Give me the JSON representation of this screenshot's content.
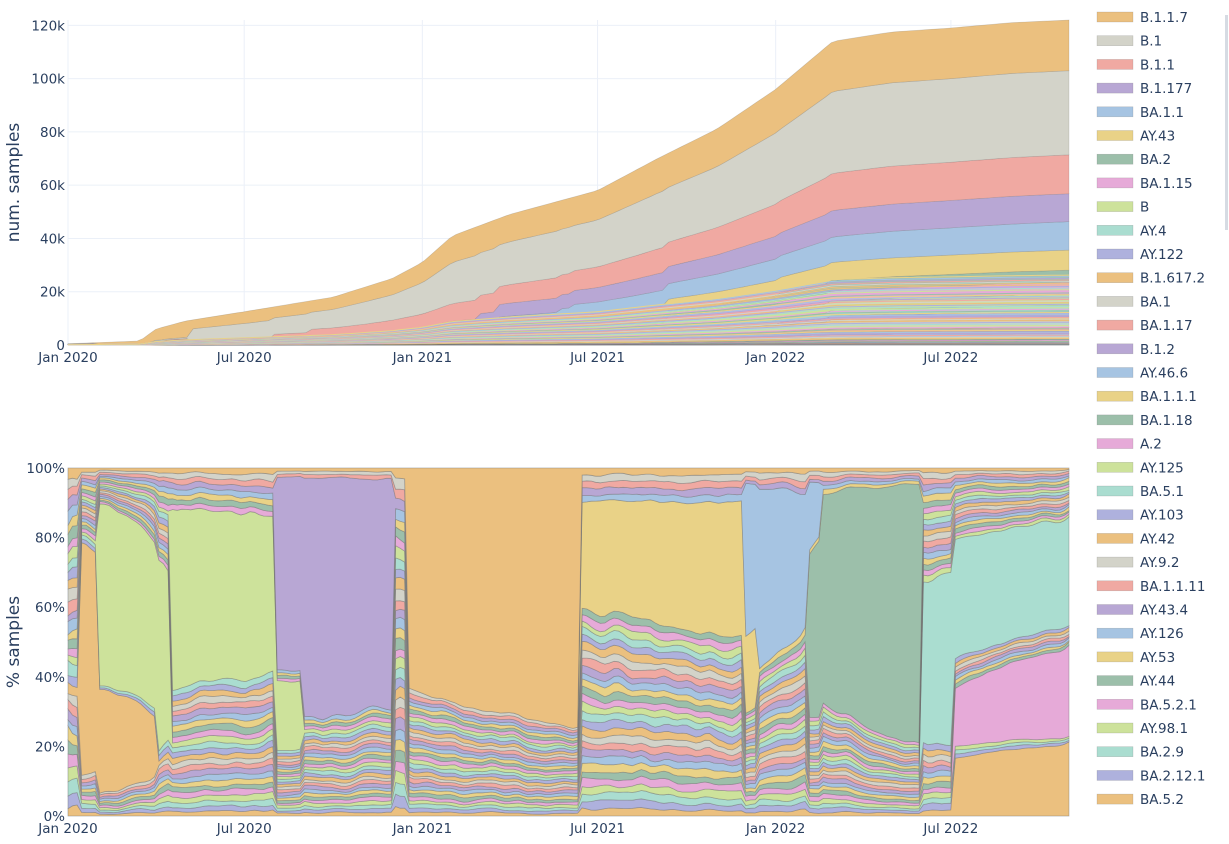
{
  "chart_data": [
    {
      "type": "area",
      "stacking": "absolute",
      "ylabel": "num. samples",
      "x_ticks": [
        "Jan 2020",
        "Jul 2020",
        "Jan 2021",
        "Jul 2021",
        "Jan 2022",
        "Jul 2022"
      ],
      "y_ticks": [
        "0",
        "20k",
        "40k",
        "60k",
        "80k",
        "100k",
        "120k"
      ],
      "xlim": [
        "2020-01-01",
        "2022-10-31"
      ],
      "ylim": [
        0,
        122000
      ],
      "grid": true,
      "total": {
        "x": [
          "2020-01-01",
          "2020-03-15",
          "2020-04-01",
          "2020-05-01",
          "2020-07-01",
          "2020-10-01",
          "2020-12-01",
          "2021-01-01",
          "2021-02-01",
          "2021-04-01",
          "2021-07-01",
          "2021-09-01",
          "2021-11-01",
          "2022-01-01",
          "2022-03-01",
          "2022-05-01",
          "2022-07-01",
          "2022-09-01",
          "2022-10-31"
        ],
        "y": [
          500,
          1500,
          6000,
          9000,
          12500,
          18000,
          25000,
          31000,
          41000,
          49000,
          58000,
          70000,
          81000,
          96000,
          114000,
          117500,
          119000,
          121000,
          122000
        ]
      }
    },
    {
      "type": "area",
      "stacking": "percent",
      "ylabel": "% samples",
      "x_ticks": [
        "Jan 2020",
        "Jul 2020",
        "Jan 2021",
        "Jul 2021",
        "Jan 2022",
        "Jul 2022"
      ],
      "y_ticks": [
        "0%",
        "20%",
        "40%",
        "60%",
        "80%",
        "100%"
      ],
      "xlim": [
        "2020-01-01",
        "2022-10-31"
      ],
      "ylim": [
        0,
        100
      ],
      "grid": true,
      "dominant_segments": [
        {
          "lineage": "AY.42",
          "x": [
            "2020-01-15",
            "2020-04-01"
          ],
          "share": [
            48,
            10
          ]
        },
        {
          "lineage": "AY.125",
          "x": [
            "2020-02-01",
            "2020-04-15"
          ],
          "share": [
            70,
            20
          ]
        },
        {
          "lineage": "B",
          "x": [
            "2020-04-15",
            "2020-09-01"
          ],
          "share": [
            25,
            18
          ]
        },
        {
          "lineage": "B.1.177",
          "x": [
            "2020-08-01",
            "2020-12-01"
          ],
          "share": [
            55,
            45
          ]
        },
        {
          "lineage": "B.1.1.7",
          "x": [
            "2020-12-15",
            "2021-06-15"
          ],
          "share": [
            40,
            70
          ]
        },
        {
          "lineage": "AY.43",
          "x": [
            "2021-06-15",
            "2021-12-15"
          ],
          "share": [
            10,
            15
          ]
        },
        {
          "lineage": "BA.1.1",
          "x": [
            "2021-12-01",
            "2022-02-15"
          ],
          "share": [
            30,
            10
          ]
        },
        {
          "lineage": "BA.2",
          "x": [
            "2022-02-01",
            "2022-06-01"
          ],
          "share": [
            30,
            70
          ]
        },
        {
          "lineage": "BA.5.1",
          "x": [
            "2022-06-01",
            "2022-10-31"
          ],
          "share": [
            20,
            30
          ]
        },
        {
          "lineage": "BA.5.2.1",
          "x": [
            "2022-07-01",
            "2022-10-31"
          ],
          "share": [
            10,
            25
          ]
        },
        {
          "lineage": "BA.5.2",
          "x": [
            "2022-07-01",
            "2022-10-31"
          ],
          "share": [
            10,
            20
          ]
        }
      ]
    }
  ],
  "legend": {
    "placement": "right",
    "entries": [
      {
        "name": "B.1.1.7",
        "color": "#ebc07f"
      },
      {
        "name": "B.1",
        "color": "#d3d3c9"
      },
      {
        "name": "B.1.1",
        "color": "#f0a9a2"
      },
      {
        "name": "B.1.177",
        "color": "#b8a7d4"
      },
      {
        "name": "BA.1.1",
        "color": "#a6c4e2"
      },
      {
        "name": "AY.43",
        "color": "#e9d287"
      },
      {
        "name": "BA.2",
        "color": "#9cbfaa"
      },
      {
        "name": "BA.1.15",
        "color": "#e6aad8"
      },
      {
        "name": "B",
        "color": "#cde29b"
      },
      {
        "name": "AY.4",
        "color": "#aaddd0"
      },
      {
        "name": "AY.122",
        "color": "#aeb1dd"
      },
      {
        "name": "B.1.617.2",
        "color": "#ebc07f"
      },
      {
        "name": "BA.1",
        "color": "#d3d3c9"
      },
      {
        "name": "BA.1.17",
        "color": "#f0a9a2"
      },
      {
        "name": "B.1.2",
        "color": "#b8a7d4"
      },
      {
        "name": "AY.46.6",
        "color": "#a6c4e2"
      },
      {
        "name": "BA.1.1.1",
        "color": "#e9d287"
      },
      {
        "name": "BA.1.18",
        "color": "#9cbfaa"
      },
      {
        "name": "A.2",
        "color": "#e6aad8"
      },
      {
        "name": "AY.125",
        "color": "#cde29b"
      },
      {
        "name": "BA.5.1",
        "color": "#aaddd0"
      },
      {
        "name": "AY.103",
        "color": "#aeb1dd"
      },
      {
        "name": "AY.42",
        "color": "#ebc07f"
      },
      {
        "name": "AY.9.2",
        "color": "#d3d3c9"
      },
      {
        "name": "BA.1.1.11",
        "color": "#f0a9a2"
      },
      {
        "name": "AY.43.4",
        "color": "#b8a7d4"
      },
      {
        "name": "AY.126",
        "color": "#a6c4e2"
      },
      {
        "name": "AY.53",
        "color": "#e9d287"
      },
      {
        "name": "AY.44",
        "color": "#9cbfaa"
      },
      {
        "name": "BA.5.2.1",
        "color": "#e6aad8"
      },
      {
        "name": "AY.98.1",
        "color": "#cde29b"
      },
      {
        "name": "BA.2.9",
        "color": "#aaddd0"
      },
      {
        "name": "BA.2.12.1",
        "color": "#aeb1dd"
      },
      {
        "name": "BA.5.2",
        "color": "#ebc07f"
      }
    ]
  }
}
